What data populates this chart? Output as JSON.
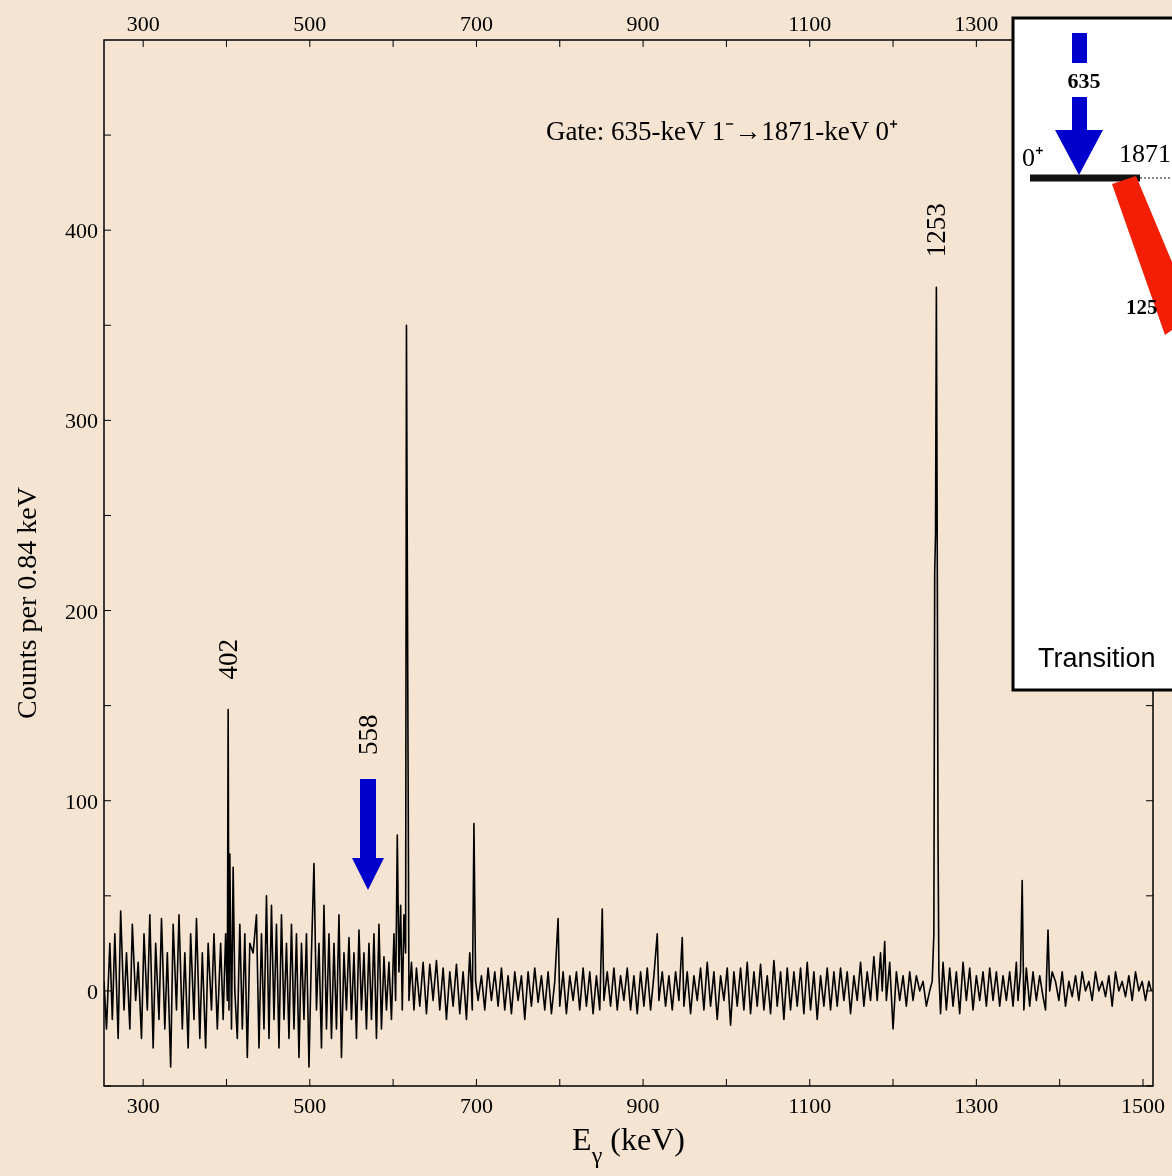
{
  "chart_data": {
    "type": "line",
    "xlabel": "E$_{γ}$ (keV)",
    "ylabel": "Counts per 0.84 keV",
    "xlim": [
      253,
      1512
    ],
    "ylim": [
      -50,
      500
    ],
    "xticks": [
      300,
      {
        "value": 400,
        "label": null
      },
      500,
      {
        "value": 600,
        "label": null
      },
      700,
      {
        "value": 800,
        "label": null
      },
      900,
      {
        "value": 1000,
        "label": null
      },
      1100,
      {
        "value": 1200,
        "label": null
      },
      1300,
      {
        "value": 1400,
        "label": null
      },
      1500
    ],
    "x2lim": [
      253,
      1512
    ],
    "x2ticks": [
      300,
      {
        "value": 400,
        "label": null
      },
      500,
      {
        "value": 600,
        "label": null
      },
      700,
      {
        "value": 800,
        "label": null
      },
      900,
      {
        "value": 1000,
        "label": null
      },
      1100,
      {
        "value": 1200,
        "label": null
      },
      1300,
      {
        "value": 1400,
        "label": null
      },
      {
        "value": 1500,
        "label": null
      }
    ],
    "yticks": [
      {
        "value": -50,
        "label": null
      },
      0,
      {
        "value": 50,
        "label": null
      },
      100,
      {
        "value": 150,
        "label": null
      },
      200,
      {
        "value": 250,
        "label": null
      },
      300,
      {
        "value": 350,
        "label": null
      },
      400,
      {
        "value": 450,
        "label": null
      }
    ],
    "marker": "none",
    "line_style": "solid",
    "series": [
      {
        "color": "#000000",
        "x": [
          253,
          256,
          260,
          263,
          266,
          270,
          273,
          277,
          280,
          284,
          287,
          291,
          294,
          298,
          301,
          305,
          308,
          312,
          315,
          319,
          322,
          326,
          329,
          333,
          336,
          340,
          343,
          347,
          350,
          354,
          357,
          361,
          364,
          368,
          371,
          375,
          378,
          382,
          385,
          389,
          393,
          396,
          399,
          401,
          402,
          403,
          404,
          406,
          408,
          410,
          413,
          416,
          419,
          422,
          425,
          428,
          430,
          432,
          434,
          436,
          439,
          442,
          445,
          448,
          451,
          454,
          457,
          460,
          463,
          466,
          469,
          472,
          475,
          478,
          481,
          484,
          487,
          490,
          493,
          496,
          499,
          502,
          505,
          506,
          508,
          511,
          514,
          517,
          520,
          523,
          526,
          529,
          532,
          535,
          538,
          541,
          544,
          547,
          550,
          553,
          556,
          559,
          562,
          565,
          568,
          571,
          574,
          577,
          580,
          583,
          586,
          589,
          592,
          595,
          598,
          601,
          603,
          605,
          607,
          609,
          611,
          613,
          615,
          616,
          617,
          618,
          619,
          622,
          625,
          628,
          632,
          636,
          640,
          644,
          648,
          652,
          656,
          660,
          664,
          668,
          672,
          676,
          680,
          684,
          688,
          692,
          695,
          697,
          699,
          702,
          706,
          710,
          714,
          718,
          722,
          726,
          730,
          734,
          738,
          742,
          746,
          750,
          754,
          758,
          762,
          766,
          770,
          774,
          778,
          782,
          786,
          790,
          794,
          798,
          800,
          804,
          808,
          812,
          816,
          820,
          824,
          828,
          832,
          836,
          840,
          844,
          848,
          851,
          853,
          857,
          861,
          865,
          869,
          873,
          877,
          881,
          885,
          889,
          893,
          897,
          901,
          905,
          909,
          913,
          917,
          919,
          923,
          927,
          931,
          935,
          939,
          943,
          947,
          949,
          953,
          957,
          961,
          965,
          969,
          973,
          977,
          981,
          985,
          989,
          993,
          997,
          1001,
          1005,
          1009,
          1013,
          1017,
          1021,
          1025,
          1029,
          1033,
          1037,
          1041,
          1045,
          1049,
          1053,
          1057,
          1061,
          1065,
          1069,
          1073,
          1077,
          1081,
          1085,
          1089,
          1093,
          1097,
          1101,
          1105,
          1109,
          1113,
          1117,
          1121,
          1125,
          1129,
          1133,
          1137,
          1141,
          1145,
          1149,
          1153,
          1157,
          1161,
          1165,
          1169,
          1173,
          1177,
          1181,
          1185,
          1187,
          1190,
          1192,
          1196,
          1200,
          1204,
          1208,
          1212,
          1216,
          1220,
          1224,
          1228,
          1232,
          1236,
          1240,
          1244,
          1247,
          1249,
          1250,
          1251,
          1252,
          1253,
          1254,
          1255,
          1257,
          1260,
          1264,
          1268,
          1272,
          1276,
          1280,
          1284,
          1288,
          1292,
          1296,
          1300,
          1304,
          1308,
          1312,
          1316,
          1320,
          1324,
          1328,
          1332,
          1336,
          1340,
          1344,
          1348,
          1350,
          1353,
          1355,
          1357,
          1360,
          1364,
          1368,
          1372,
          1376,
          1380,
          1383,
          1385,
          1386,
          1388,
          1391,
          1395,
          1399,
          1403,
          1407,
          1411,
          1415,
          1419,
          1423,
          1427,
          1431,
          1435,
          1439,
          1443,
          1447,
          1451,
          1455,
          1459,
          1463,
          1467,
          1471,
          1475,
          1479,
          1483,
          1487,
          1491,
          1495,
          1499,
          1503,
          1507,
          1510
        ],
        "values": [
          5,
          -20,
          25,
          -15,
          30,
          -25,
          42,
          -10,
          20,
          -20,
          35,
          -5,
          15,
          -25,
          30,
          -10,
          40,
          -30,
          25,
          -15,
          38,
          -20,
          20,
          -40,
          35,
          -10,
          40,
          -20,
          20,
          -30,
          30,
          -15,
          38,
          -25,
          20,
          -30,
          25,
          -10,
          30,
          -20,
          25,
          -15,
          30,
          -5,
          148,
          -10,
          72,
          -20,
          65,
          0,
          -25,
          35,
          -20,
          30,
          -35,
          25,
          null,
          20,
          null,
          40,
          -30,
          30,
          -20,
          50,
          -25,
          45,
          -15,
          35,
          -30,
          40,
          -15,
          25,
          -25,
          35,
          -20,
          30,
          -35,
          25,
          -15,
          30,
          -40,
          20,
          67,
          null,
          -10,
          25,
          -30,
          45,
          -20,
          30,
          -25,
          25,
          -20,
          40,
          -35,
          20,
          -10,
          28,
          -15,
          20,
          -25,
          32,
          -10,
          20,
          -20,
          25,
          -15,
          30,
          -25,
          35,
          -20,
          18,
          -10,
          15,
          -15,
          30,
          -5,
          82,
          10,
          45,
          -10,
          40,
          20,
          350,
          null,
          null,
          -5,
          15,
          -10,
          12,
          -8,
          15,
          -12,
          14,
          -5,
          16,
          -10,
          12,
          -15,
          10,
          -8,
          14,
          -12,
          10,
          -15,
          20,
          -10,
          88,
          5,
          -5,
          8,
          -10,
          12,
          -5,
          10,
          -8,
          12,
          -10,
          8,
          -12,
          10,
          -5,
          8,
          -15,
          10,
          -8,
          12,
          -6,
          8,
          -10,
          10,
          -12,
          5,
          38,
          -8,
          10,
          -12,
          8,
          -5,
          10,
          -10,
          12,
          -8,
          10,
          -12,
          8,
          -10,
          43,
          -5,
          10,
          -8,
          12,
          -10,
          8,
          -5,
          12,
          -10,
          8,
          -12,
          10,
          -8,
          12,
          -10,
          8,
          30,
          -5,
          10,
          -8,
          8,
          -10,
          10,
          -5,
          28,
          -8,
          10,
          -12,
          8,
          -5,
          12,
          -10,
          15,
          -8,
          10,
          -15,
          8,
          -5,
          12,
          -18,
          10,
          -8,
          12,
          -10,
          15,
          -12,
          10,
          -8,
          14,
          -10,
          8,
          -12,
          16,
          -8,
          10,
          -15,
          12,
          -10,
          10,
          -8,
          12,
          -12,
          15,
          -10,
          10,
          -15,
          8,
          -8,
          12,
          -10,
          10,
          -8,
          12,
          -5,
          10,
          -12,
          8,
          -5,
          15,
          -8,
          10,
          -5,
          18,
          -5,
          20,
          0,
          26,
          -5,
          15,
          -20,
          10,
          -5,
          8,
          -8,
          10,
          -5,
          8,
          0,
          5,
          -8,
          0,
          5,
          30,
          220,
          240,
          370,
          240,
          80,
          10,
          -12,
          15,
          -10,
          12,
          -8,
          10,
          -12,
          15,
          -5,
          12,
          -10,
          8,
          -5,
          10,
          -8,
          12,
          -5,
          10,
          -8,
          8,
          -5,
          10,
          -8,
          15,
          -5,
          10,
          58,
          -10,
          12,
          -8,
          10,
          -5,
          8,
          -3,
          -10,
          null,
          32,
          0,
          10,
          5,
          -5,
          10,
          -8,
          5,
          -3,
          8,
          -5,
          10,
          0,
          5,
          -5,
          10,
          0,
          5,
          -3,
          8,
          -8,
          10,
          0,
          5,
          -3,
          8,
          -5,
          10,
          0,
          5,
          -5,
          5,
          0
        ]
      }
    ],
    "annotations": [
      "Gate: 635-keV 1⁻→1871-keV 0⁺",
      {
        "text": "402",
        "x": 402,
        "y": 148
      },
      {
        "text": "1253",
        "x": 1252,
        "y": 370
      },
      "558",
      "635",
      "0⁺",
      "1871",
      "125",
      "Transition"
    ]
  }
}
